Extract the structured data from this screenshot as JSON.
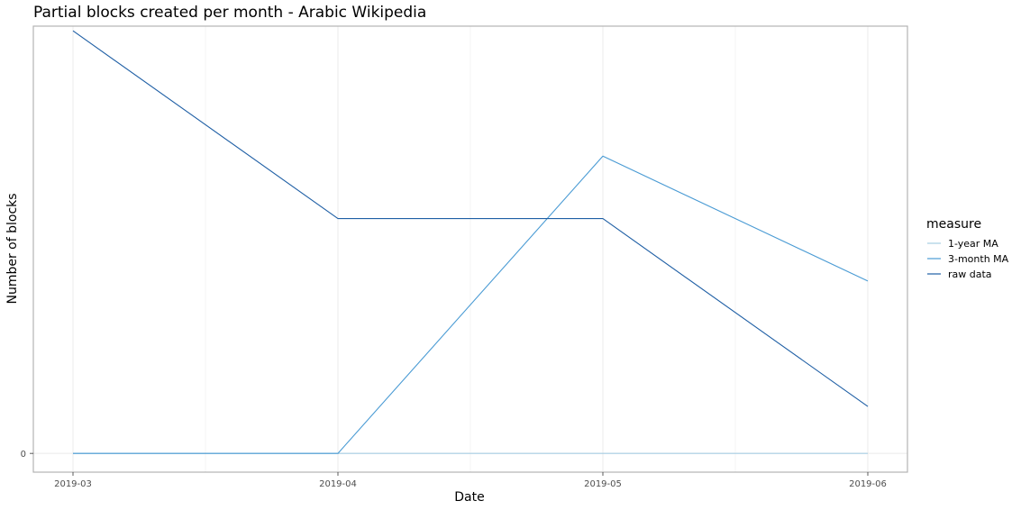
{
  "chart_data": {
    "type": "line",
    "title": "Partial blocks created per month - Arabic Wikipedia",
    "xlabel": "Date",
    "ylabel": "Number of blocks",
    "x": [
      "2019-03",
      "2019-04",
      "2019-05",
      "2019-06"
    ],
    "y_ticks": [
      0
    ],
    "ylim": [
      -0.4,
      9.1
    ],
    "grid": true,
    "legend": {
      "title": "measure",
      "position": "right"
    },
    "series": [
      {
        "name": "1-year MA",
        "color": "#a6cee3",
        "values": [
          0,
          0,
          0,
          0
        ]
      },
      {
        "name": "3-month MA",
        "color": "#4a9bd4",
        "values": [
          0,
          0,
          6.33,
          3.67
        ]
      },
      {
        "name": "raw data",
        "color": "#1f5fa5",
        "values": [
          9,
          5,
          5,
          1
        ]
      }
    ]
  }
}
